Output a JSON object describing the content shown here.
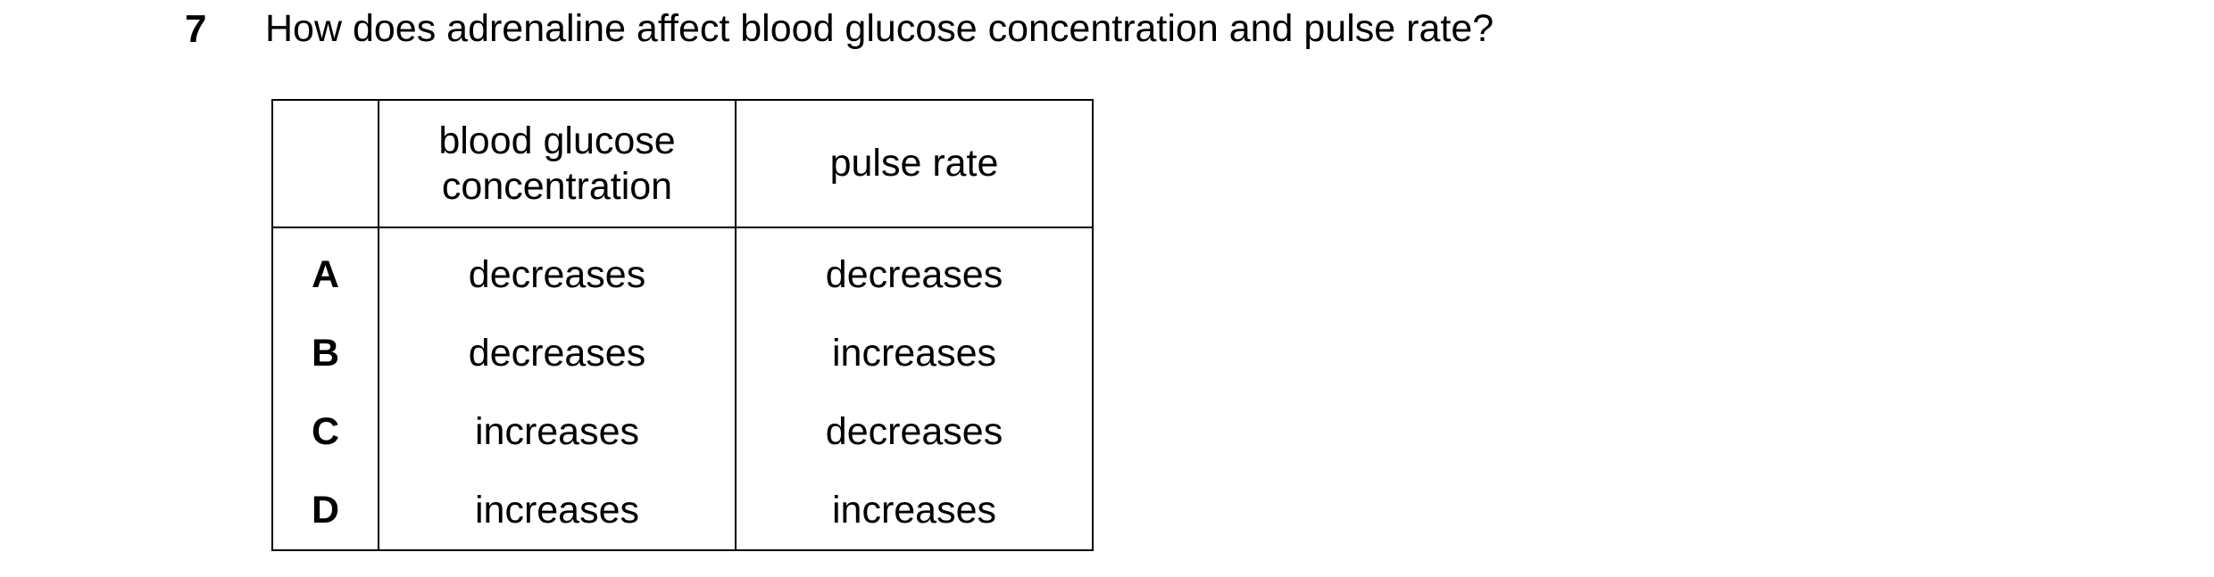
{
  "question": {
    "number": "7",
    "text": "How does adrenaline affect blood glucose concentration and pulse rate?"
  },
  "table": {
    "columns": [
      "blood glucose concentration",
      "pulse rate"
    ],
    "rows": [
      [
        "A",
        "decreases",
        "decreases"
      ],
      [
        "B",
        "decreases",
        "increases"
      ],
      [
        "C",
        "increases",
        "decreases"
      ],
      [
        "D",
        "increases",
        "increases"
      ]
    ]
  }
}
